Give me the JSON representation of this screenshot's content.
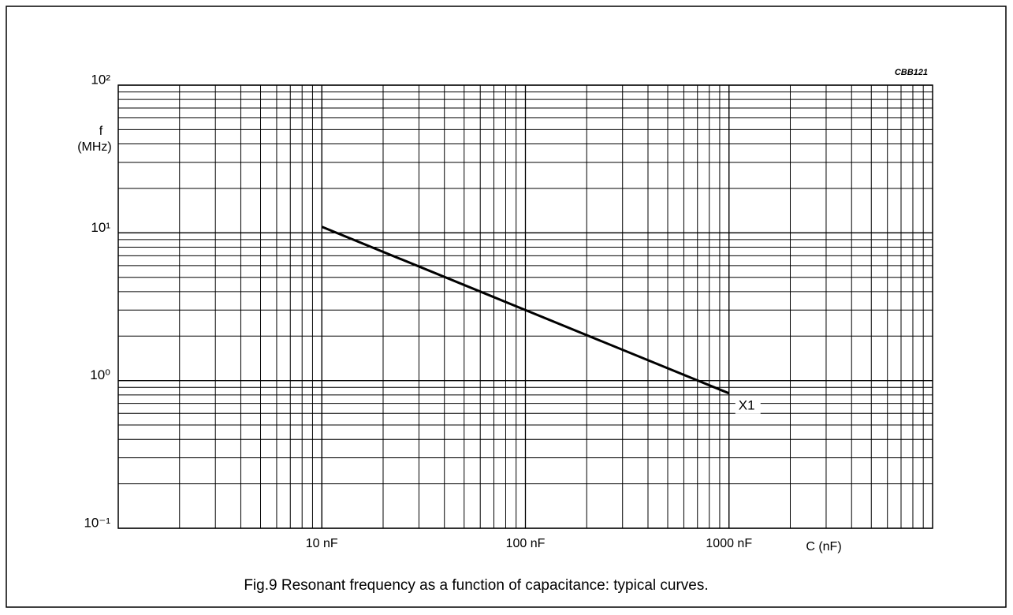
{
  "chart_data": {
    "type": "line",
    "title": "Fig.9  Resonant frequency as a function of capacitance: typical curves.",
    "annotation": "CBB121",
    "xlabel": "C (nF)",
    "ylabel": [
      "f",
      "(MHz)"
    ],
    "x": [
      10,
      100,
      1000
    ],
    "series": [
      {
        "name": "X1",
        "color": "#000000",
        "values": [
          11,
          3,
          0.82
        ]
      }
    ],
    "xlim": [
      1,
      10000
    ],
    "ylim": [
      0.1,
      100
    ],
    "xticks": [
      {
        "value": 10,
        "label": "10 nF"
      },
      {
        "value": 100,
        "label": "100 nF"
      },
      {
        "value": 1000,
        "label": "1000 nF"
      }
    ],
    "yticks": [
      {
        "value": 0.1,
        "label": "10⁻¹"
      },
      {
        "value": 1,
        "label": "10⁰"
      },
      {
        "value": 10,
        "label": "10¹"
      },
      {
        "value": 100,
        "label": "10²"
      }
    ],
    "xlog": true,
    "ylog": true,
    "grid": true,
    "minor_grid": true
  }
}
